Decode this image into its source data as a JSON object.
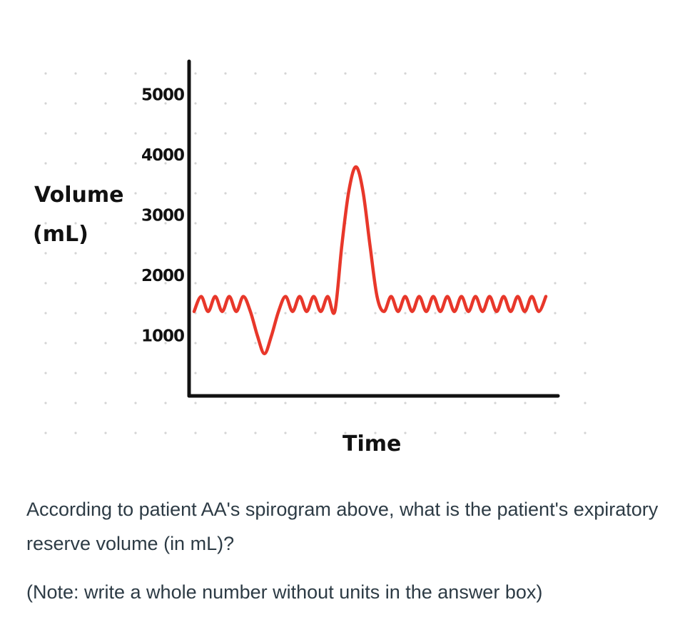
{
  "chart_data": {
    "type": "line",
    "title": "",
    "ylabel_line1": "Volume",
    "ylabel_line2": "(mL)",
    "xlabel": "Time",
    "ylim": [
      0,
      5500
    ],
    "yticks": [
      1000,
      2000,
      3000,
      4000,
      5000
    ],
    "ytick_labels": [
      "1000",
      "2000",
      "3000",
      "4000",
      "5000"
    ],
    "grid": "dotted",
    "series": [
      {
        "color": "#e8372a",
        "x": [
          0,
          0.4,
          0.8,
          1.2,
          1.6,
          2.0,
          2.4,
          2.8,
          3.2,
          3.6,
          4.0,
          4.4,
          4.8,
          5.2,
          5.6,
          6.0,
          6.4,
          6.8,
          7.2,
          7.6,
          8.0,
          8.4,
          8.8,
          9.2,
          9.6,
          10.0,
          10.4,
          10.8,
          11.2,
          11.6,
          12.0,
          12.4,
          12.8,
          13.2,
          13.6,
          14.0,
          14.4,
          14.8,
          15.2,
          15.6,
          16.0,
          16.4,
          16.8,
          17.2,
          17.6,
          18.0,
          18.4,
          18.8,
          19.2,
          19.6,
          20.0
        ],
        "y": [
          1400,
          1650,
          1400,
          1650,
          1400,
          1650,
          1400,
          1650,
          1400,
          1000,
          700,
          1000,
          1400,
          1650,
          1400,
          1650,
          1400,
          1650,
          1400,
          1650,
          1400,
          2500,
          3400,
          3800,
          3400,
          2500,
          1650,
          1400,
          1650,
          1400,
          1650,
          1400,
          1650,
          1400,
          1650,
          1400,
          1650,
          1400,
          1650,
          1400,
          1650,
          1400,
          1650,
          1400,
          1650,
          1400,
          1650,
          1400,
          1650,
          1400,
          1650
        ]
      }
    ]
  },
  "question": {
    "main": "According to patient AA's spirogram above, what is the patient's expiratory reserve volume (in mL)?",
    "note": "(Note: write a whole number without units in the answer box)"
  }
}
